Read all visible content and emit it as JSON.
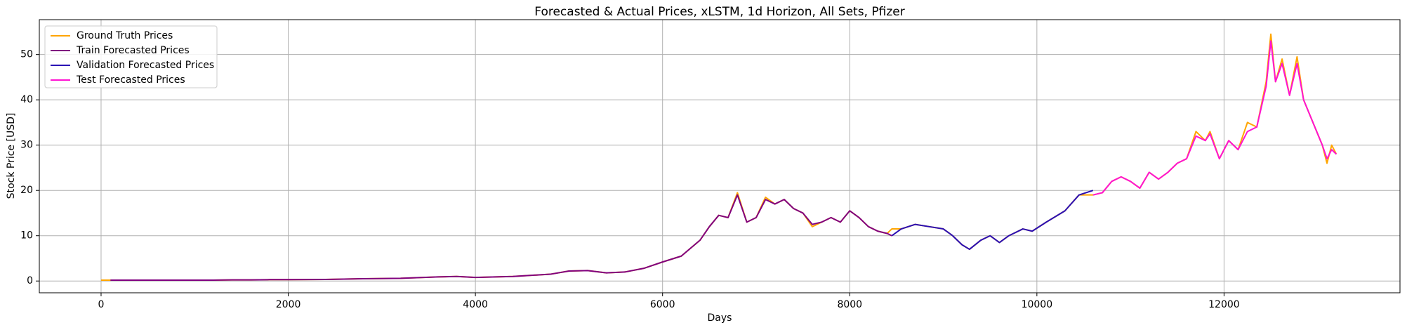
{
  "chart_data": {
    "type": "line",
    "title": "Forecasted & Actual Prices, xLSTM, 1d Horizon, All Sets, Pfizer",
    "x_label": "Days",
    "y_label": "Stock Price [USD]",
    "xlim": [
      -660,
      13880
    ],
    "ylim": [
      -2.6,
      57.7
    ],
    "xticks": [
      0,
      2000,
      4000,
      6000,
      8000,
      10000,
      12000
    ],
    "yticks": [
      0,
      10,
      20,
      30,
      40,
      50
    ],
    "grid": true,
    "legend": "upper left",
    "series": [
      {
        "name": "Ground Truth Prices",
        "color": "#ffa500",
        "x": [
          0,
          100,
          200,
          400,
          600,
          800,
          1000,
          1200,
          1400,
          1600,
          1800,
          2000,
          2400,
          2800,
          3200,
          3600,
          3800,
          4000,
          4400,
          4800,
          5000,
          5200,
          5400,
          5600,
          5800,
          6000,
          6200,
          6400,
          6500,
          6600,
          6700,
          6800,
          6900,
          7000,
          7100,
          7200,
          7300,
          7400,
          7500,
          7600,
          7700,
          7800,
          7900,
          8000,
          8100,
          8200,
          8300,
          8400,
          8450,
          8550,
          8700,
          8850,
          9000,
          9100,
          9200,
          9280,
          9400,
          9500,
          9600,
          9700,
          9850,
          9950,
          10100,
          10300,
          10450,
          10600,
          10700,
          10800,
          10900,
          11000,
          11100,
          11200,
          11300,
          11400,
          11500,
          11600,
          11700,
          11800,
          11850,
          11950,
          12050,
          12150,
          12250,
          12350,
          12450,
          12500,
          12550,
          12620,
          12700,
          12780,
          12850,
          12950,
          13050,
          13100,
          13150,
          13200
        ],
        "values": [
          0.2,
          0.2,
          0.2,
          0.2,
          0.2,
          0.2,
          0.2,
          0.2,
          0.25,
          0.25,
          0.3,
          0.3,
          0.35,
          0.5,
          0.6,
          0.9,
          1.0,
          0.8,
          1.0,
          1.5,
          2.2,
          2.3,
          1.8,
          2.0,
          2.8,
          4.2,
          5.5,
          9,
          12,
          14.5,
          14,
          19.5,
          13,
          14,
          18.5,
          17,
          18,
          16,
          15,
          12,
          13,
          14,
          13,
          15.5,
          14,
          12,
          11,
          10.5,
          11.5,
          11.5,
          12.5,
          12,
          11.5,
          10,
          8,
          7,
          9,
          10,
          8.5,
          10,
          11.5,
          11,
          13,
          15.5,
          19,
          19,
          19.5,
          22,
          23,
          22,
          20.5,
          24,
          22.5,
          24,
          26,
          27,
          33,
          31,
          33,
          27,
          31,
          29,
          35,
          34,
          44,
          54.5,
          44,
          49,
          41,
          49.5,
          40,
          35,
          30,
          26,
          30,
          28
        ]
      },
      {
        "name": "Train Forecasted Prices",
        "color": "#800080",
        "x": [
          100,
          200,
          400,
          600,
          800,
          1000,
          1200,
          1400,
          1600,
          1800,
          2000,
          2400,
          2800,
          3200,
          3600,
          3800,
          4000,
          4400,
          4800,
          5000,
          5200,
          5400,
          5600,
          5800,
          6000,
          6200,
          6400,
          6500,
          6600,
          6700,
          6800,
          6900,
          7000,
          7100,
          7200,
          7300,
          7400,
          7500,
          7600,
          7700,
          7800,
          7900,
          8000,
          8100,
          8200,
          8300,
          8400,
          8450
        ],
        "values": [
          0.2,
          0.2,
          0.2,
          0.2,
          0.2,
          0.2,
          0.2,
          0.25,
          0.25,
          0.3,
          0.3,
          0.35,
          0.5,
          0.6,
          0.9,
          1.0,
          0.8,
          1.0,
          1.5,
          2.2,
          2.3,
          1.8,
          2.0,
          2.8,
          4.2,
          5.5,
          9,
          12,
          14.5,
          14,
          19,
          13,
          14,
          18,
          17,
          18,
          16,
          15,
          12.5,
          13,
          14,
          13,
          15.5,
          14,
          12,
          11,
          10.5,
          10
        ]
      },
      {
        "name": "Validation Forecasted Prices",
        "color": "#2a0fb4",
        "x": [
          8450,
          8550,
          8700,
          8850,
          9000,
          9100,
          9200,
          9280,
          9400,
          9500,
          9600,
          9700,
          9850,
          9950,
          10100,
          10300,
          10450,
          10600
        ],
        "values": [
          10,
          11.5,
          12.5,
          12,
          11.5,
          10,
          8,
          7,
          9,
          10,
          8.5,
          10,
          11.5,
          11,
          13,
          15.5,
          19,
          20
        ]
      },
      {
        "name": "Test Forecasted Prices",
        "color": "#ff14d2",
        "x": [
          10600,
          10700,
          10800,
          10900,
          11000,
          11100,
          11200,
          11300,
          11400,
          11500,
          11600,
          11700,
          11800,
          11850,
          11950,
          12050,
          12150,
          12250,
          12350,
          12450,
          12500,
          12550,
          12620,
          12700,
          12780,
          12850,
          12950,
          13050,
          13100,
          13150,
          13200
        ],
        "values": [
          19,
          19.5,
          22,
          23,
          22,
          20.5,
          24,
          22.5,
          24,
          26,
          27,
          32,
          31,
          32.5,
          27,
          31,
          29,
          33,
          34,
          43,
          53,
          44,
          48,
          41,
          48,
          40,
          35,
          30,
          27,
          29,
          28
        ]
      }
    ]
  }
}
